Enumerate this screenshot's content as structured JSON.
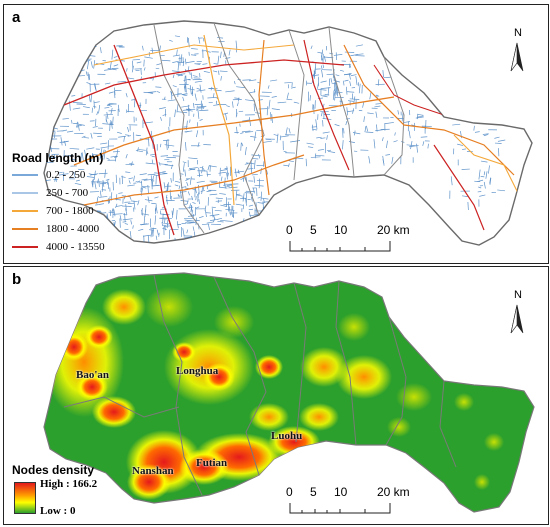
{
  "panel_a": {
    "label": "a",
    "legend_title": "Road length (m)",
    "legend": [
      {
        "range": "0.2 - 250",
        "color": "#7aa8d8"
      },
      {
        "range": "250 - 700",
        "color": "#a9c6e6"
      },
      {
        "range": "700 - 1800",
        "color": "#f4a83a"
      },
      {
        "range": "1800 - 4000",
        "color": "#e67e22"
      },
      {
        "range": "4000 - 13550",
        "color": "#cc2222"
      }
    ],
    "north": "N",
    "scale_ticks": [
      "0",
      "5",
      "10",
      "20 km"
    ]
  },
  "panel_b": {
    "label": "b",
    "legend_title": "Nodes density",
    "legend_high": "High : 166.2",
    "legend_low": "Low : 0",
    "north": "N",
    "scale_ticks": [
      "0",
      "5",
      "10",
      "20 km"
    ],
    "districts": [
      "Bao'an",
      "Longhua",
      "Luohu",
      "Nanshan",
      "Futian"
    ]
  },
  "colors": {
    "density_high": "#e41a1c",
    "density_mid": "#ffff00",
    "density_low": "#2ca02c",
    "boundary": "#808080",
    "road_local": "#2a6fb8"
  }
}
